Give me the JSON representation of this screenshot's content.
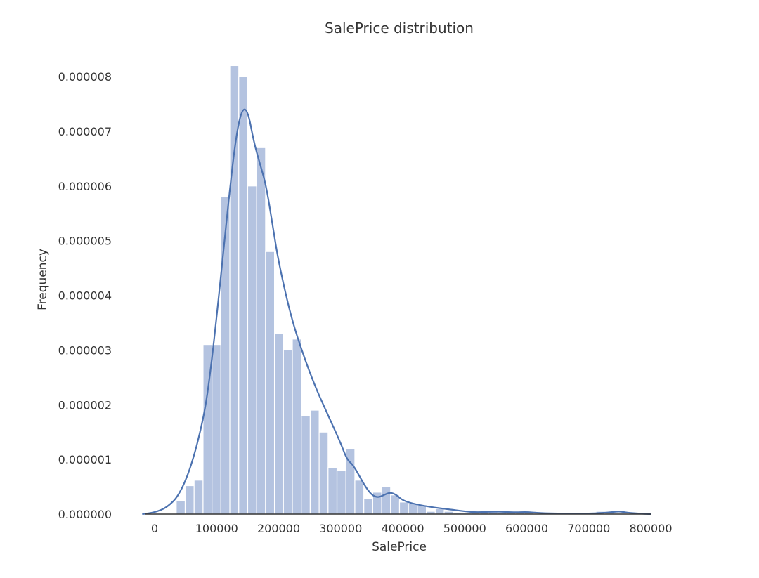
{
  "chart_data": {
    "type": "bar",
    "title": "SalePrice distribution",
    "xlabel": "SalePrice",
    "ylabel": "Frequency",
    "xlim": [
      -20000,
      800000
    ],
    "ylim": [
      0,
      8.3e-06
    ],
    "grid": false,
    "bar_color": "#b4c3e0",
    "bar_edge_color": "#ffffff",
    "line_color": "#4c72b0",
    "x_ticks": [
      {
        "value": 0,
        "label": "0"
      },
      {
        "value": 100000,
        "label": "100000"
      },
      {
        "value": 200000,
        "label": "200000"
      },
      {
        "value": 300000,
        "label": "300000"
      },
      {
        "value": 400000,
        "label": "400000"
      },
      {
        "value": 500000,
        "label": "500000"
      },
      {
        "value": 600000,
        "label": "600000"
      },
      {
        "value": 700000,
        "label": "700000"
      },
      {
        "value": 800000,
        "label": "800000"
      }
    ],
    "y_ticks": [
      {
        "value": 0,
        "label": "0.000000"
      },
      {
        "value": 1e-06,
        "label": "0.000001"
      },
      {
        "value": 2e-06,
        "label": "0.000002"
      },
      {
        "value": 3e-06,
        "label": "0.000003"
      },
      {
        "value": 4e-06,
        "label": "0.000004"
      },
      {
        "value": 5e-06,
        "label": "0.000005"
      },
      {
        "value": 6e-06,
        "label": "0.000006"
      },
      {
        "value": 7e-06,
        "label": "0.000007"
      },
      {
        "value": 8e-06,
        "label": "0.000008"
      }
    ],
    "bins": {
      "start": 34900,
      "width": 14400,
      "values": [
        2.5e-07,
        5.2e-07,
        6.2e-07,
        3.1e-06,
        3.1e-06,
        5.8e-06,
        8.2e-06,
        8e-06,
        6e-06,
        6.7e-06,
        4.8e-06,
        3.3e-06,
        3e-06,
        3.2e-06,
        1.8e-06,
        1.9e-06,
        1.5e-06,
        8.5e-07,
        8e-07,
        1.2e-06,
        6.2e-07,
        2.8e-07,
        4e-07,
        5e-07,
        3.5e-07,
        2.2e-07,
        2e-07,
        1.5e-07,
        5e-08,
        1e-07,
        5e-08,
        3e-08,
        2e-08,
        2e-08,
        3e-08,
        5e-08,
        3e-08,
        3e-08,
        2e-08,
        2e-08,
        1e-08,
        1e-08,
        1e-08,
        1e-08,
        1e-08,
        1e-08,
        1e-08,
        5e-08,
        2e-08,
        1e-08,
        1e-08
      ]
    },
    "kde": {
      "x": [
        -20000,
        0,
        20000,
        40000,
        60000,
        80000,
        90000,
        100000,
        110000,
        120000,
        130000,
        140000,
        150000,
        160000,
        170000,
        180000,
        190000,
        200000,
        220000,
        240000,
        260000,
        280000,
        300000,
        310000,
        320000,
        330000,
        340000,
        350000,
        360000,
        370000,
        380000,
        390000,
        400000,
        420000,
        450000,
        480000,
        500000,
        520000,
        550000,
        580000,
        600000,
        620000,
        650000,
        680000,
        700000,
        720000,
        740000,
        750000,
        760000,
        780000,
        800000
      ],
      "y": [
        0.0,
        3e-08,
        1.2e-07,
        3.5e-07,
        9e-07,
        1.8e-06,
        2.6e-06,
        3.6e-06,
        4.7e-06,
        5.8e-06,
        6.8e-06,
        7.4e-06,
        7.4e-06,
        6.8e-06,
        6.4e-06,
        6e-06,
        5.3e-06,
        4.6e-06,
        3.6e-06,
        2.9e-06,
        2.3e-06,
        1.8e-06,
        1.3e-06,
        1e-06,
        9e-07,
        7e-07,
        5e-07,
        3.5e-07,
        3e-07,
        3.5e-07,
        4e-07,
        3.5e-07,
        2.5e-07,
        1.8e-07,
        1.2e-07,
        8e-08,
        5e-08,
        3e-08,
        5e-08,
        3e-08,
        4e-08,
        2e-08,
        1e-08,
        1e-08,
        1e-08,
        2e-08,
        4e-08,
        5e-08,
        3e-08,
        1e-08,
        0.0
      ]
    }
  }
}
